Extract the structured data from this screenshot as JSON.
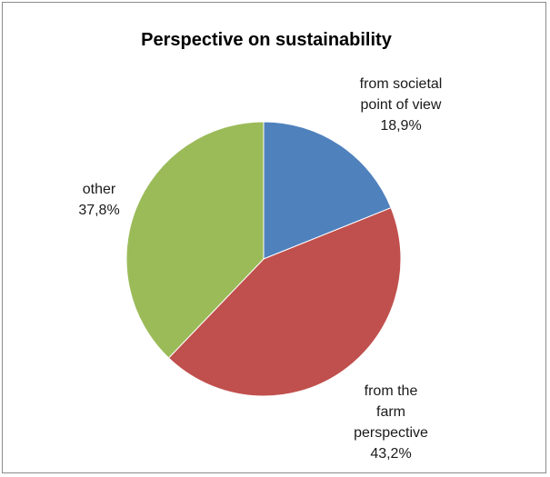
{
  "chart_data": {
    "type": "pie",
    "title": "Perspective on sustainability",
    "slices": [
      {
        "label_lines": [
          "from societal",
          "point of view"
        ],
        "value_label": "18,9%",
        "value": 18.9,
        "color": "#4f81bd"
      },
      {
        "label_lines": [
          "from the",
          "farm",
          "perspective"
        ],
        "value_label": "43,2%",
        "value": 43.2,
        "color": "#c0504d"
      },
      {
        "label_lines": [
          "other"
        ],
        "value_label": "37,8%",
        "value": 37.8,
        "color": "#9bbb59"
      }
    ],
    "start_angle": "12 o'clock",
    "direction": "clockwise",
    "legend": "none"
  }
}
